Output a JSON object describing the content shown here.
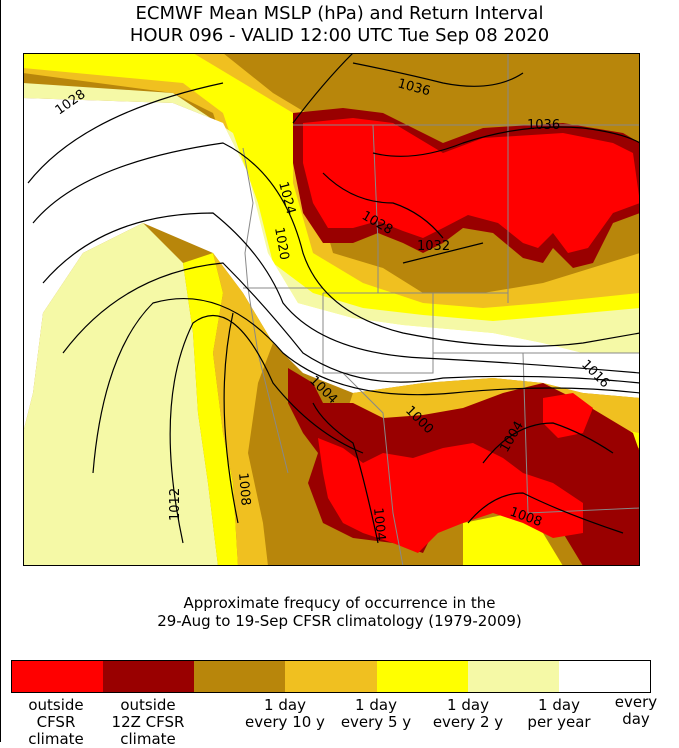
{
  "title": {
    "line1": "ECMWF Mean MSLP (hPa) and Return Interval",
    "line2": "HOUR 096 - VALID 12:00 UTC Tue Sep 08 2020"
  },
  "map": {
    "contour_labels": [
      "1036",
      "1032",
      "1028",
      "1024",
      "1020",
      "1028",
      "1032",
      "1016",
      "1004",
      "1000",
      "1004",
      "1012",
      "1008",
      "1004",
      "1008"
    ],
    "colors": {
      "outside_cfsr": "#ff0000",
      "outside_12z": "#990000",
      "every_10y": "#b8860b",
      "every_5y": "#f0c020",
      "every_2y": "#ffff00",
      "per_year": "#f5f9a6",
      "every_day": "#ffffff"
    }
  },
  "caption": {
    "line1": "Approximate frequcy of occurrence in the",
    "line2": "29-Aug to 19-Sep CFSR climatology (1979-2009)"
  },
  "legend": {
    "swatches": [
      "#ff0000",
      "#ff0000",
      "#990000",
      "#990000",
      "#b8860b",
      "#b8860b",
      "#f0c020",
      "#f0c020",
      "#ffff00",
      "#ffff00",
      "#f5f9a6",
      "#f5f9a6",
      "#ffffff",
      "#ffffff"
    ],
    "labels": {
      "outside_cfsr": [
        "outside",
        "CFSR",
        "climate"
      ],
      "outside_12z": [
        "outside",
        "12Z CFSR",
        "climate"
      ],
      "every_10y": [
        "1 day",
        "every 10 y"
      ],
      "every_5y": [
        "1 day",
        "every 5 y"
      ],
      "every_2y": [
        "1 day",
        "every 2 y"
      ],
      "per_year": [
        "1 day",
        "per year"
      ],
      "every_day": [
        "every",
        "day"
      ]
    }
  }
}
